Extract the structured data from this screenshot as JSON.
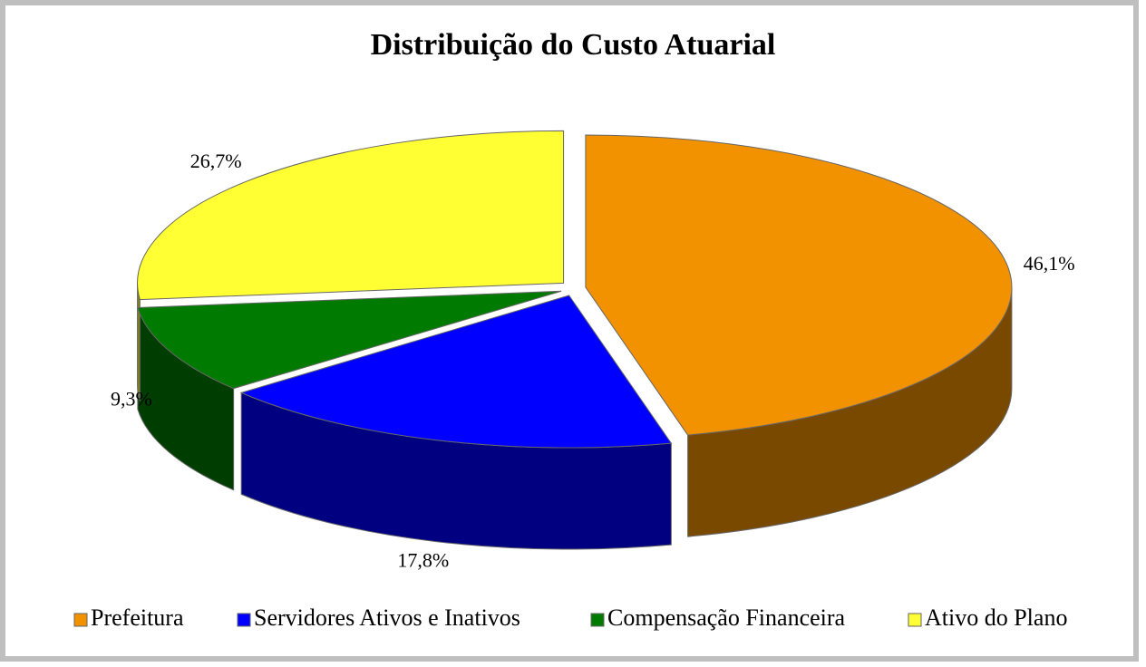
{
  "chart_data": {
    "type": "pie",
    "title": "Distribuição do Custo Atuarial",
    "categories": [
      "Prefeitura",
      "Servidores Ativos e Inativos",
      "Compensação Financeira",
      "Ativo do Plano"
    ],
    "values": [
      46.1,
      17.8,
      9.3,
      26.7
    ],
    "value_labels": [
      "46,1%",
      "17,8%",
      "9,3%",
      "26,7%"
    ],
    "colors": [
      "#f39200",
      "#0000ff",
      "#007a00",
      "#ffff33"
    ],
    "legend": "bottom"
  }
}
